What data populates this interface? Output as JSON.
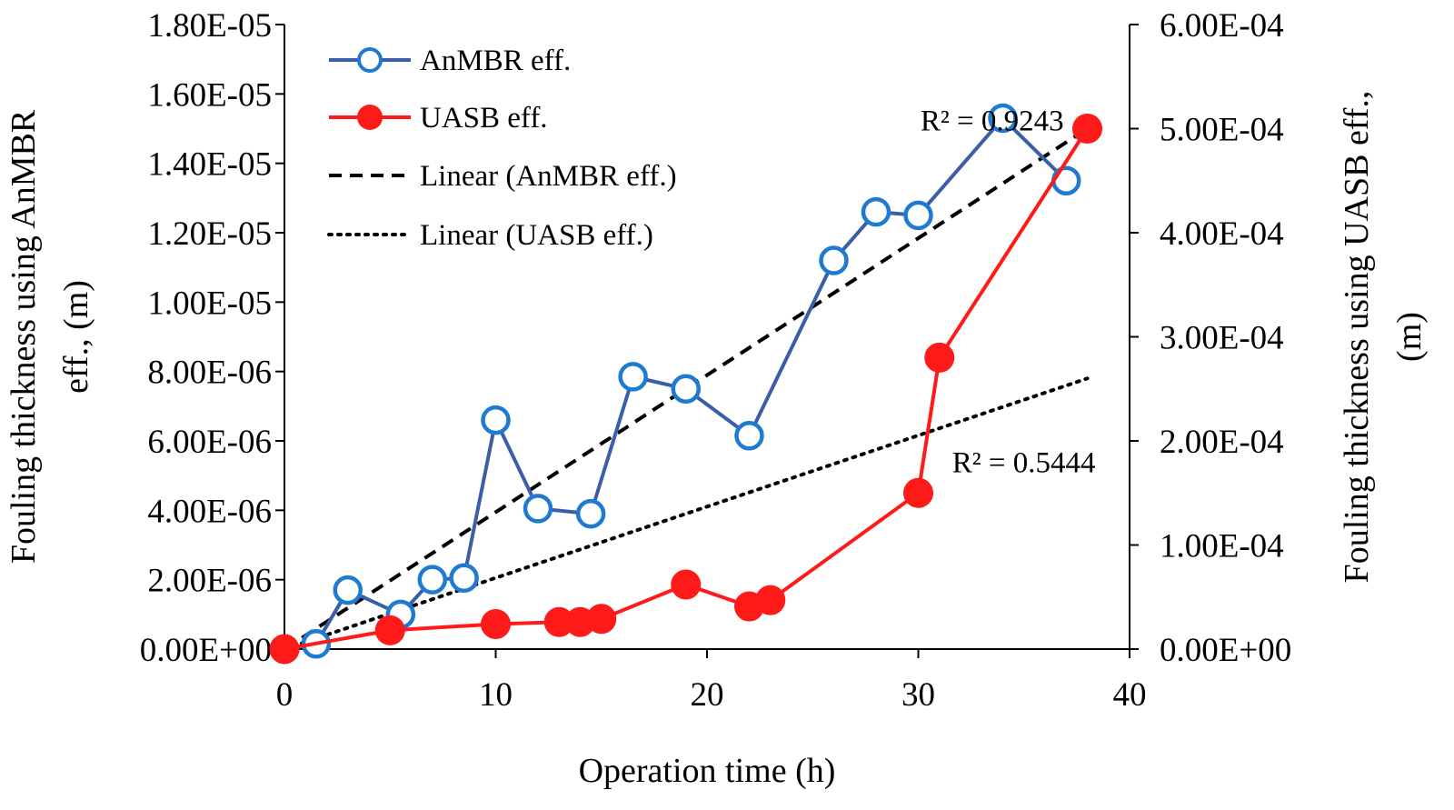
{
  "chart_data": {
    "type": "line",
    "xlabel": "Operation time (h)",
    "ylabel_left_lines": [
      "Fouling thickness using AnMBR",
      "eff., (m)"
    ],
    "ylabel_right_lines": [
      "Fouling thickness using UASB eff.,",
      "(m)"
    ],
    "xlim": [
      0,
      40
    ],
    "ylim_left": [
      0,
      1.8e-05
    ],
    "ylim_right": [
      0,
      0.0006
    ],
    "x_ticks": [
      0,
      10,
      20,
      30,
      40
    ],
    "x_tick_labels": [
      "0",
      "10",
      "20",
      "30",
      "40"
    ],
    "y_left_ticks": [
      0,
      2e-06,
      4e-06,
      6e-06,
      8e-06,
      1e-05,
      1.2e-05,
      1.4e-05,
      1.6e-05,
      1.8e-05
    ],
    "y_left_tick_labels": [
      "0.00E+00",
      "2.00E-06",
      "4.00E-06",
      "6.00E-06",
      "8.00E-06",
      "1.00E-05",
      "1.20E-05",
      "1.40E-05",
      "1.60E-05",
      "1.80E-05"
    ],
    "y_right_ticks": [
      0,
      0.0001,
      0.0002,
      0.0003,
      0.0004,
      0.0005,
      0.0006
    ],
    "y_right_tick_labels": [
      "0.00E+00",
      "1.00E-04",
      "2.00E-04",
      "3.00E-04",
      "4.00E-04",
      "5.00E-04",
      "6.00E-04"
    ],
    "grid": false,
    "legend_position": "top-left",
    "series": [
      {
        "name": "AnMBR eff.",
        "axis": "left",
        "color": "#3a5ea8",
        "marker": "open-circle",
        "marker_edge": "#1f7ad1",
        "x": [
          0,
          1.5,
          3,
          5.5,
          7,
          8.5,
          10,
          12,
          14.5,
          16.5,
          19,
          22,
          26,
          28,
          30,
          34,
          37
        ],
        "y": [
          0,
          1.5e-07,
          1.7e-06,
          1e-06,
          2e-06,
          2.05e-06,
          6.6e-06,
          4.05e-06,
          3.9e-06,
          7.85e-06,
          7.5e-06,
          6.15e-06,
          1.12e-05,
          1.26e-05,
          1.25e-05,
          1.53e-05,
          1.35e-05
        ]
      },
      {
        "name": "UASB eff.",
        "axis": "right",
        "color": "#ff1a1a",
        "marker": "filled-circle",
        "x": [
          0,
          5,
          10,
          13,
          14,
          15,
          19,
          22,
          23,
          30,
          31,
          38
        ],
        "y": [
          0,
          1.8e-05,
          2.4e-05,
          2.6e-05,
          2.6e-05,
          2.9e-05,
          6.2e-05,
          4.1e-05,
          4.7e-05,
          0.00015,
          0.00028,
          0.0005
        ]
      },
      {
        "name": "Linear (AnMBR eff.)",
        "axis": "left",
        "style": "dashed",
        "color": "#000000",
        "x": [
          0,
          38
        ],
        "y": [
          0,
          1.5e-05
        ]
      },
      {
        "name": "Linear (UASB eff.)",
        "axis": "right",
        "style": "dotted",
        "color": "#000000",
        "x": [
          0,
          38
        ],
        "y": [
          0,
          0.00026
        ]
      }
    ],
    "annotations": [
      {
        "text": "R² = 0.9243",
        "near_series": "Linear (AnMBR eff.)",
        "x": 30.1,
        "y_left": 1.495e-05
      },
      {
        "text": "R² = 0.5444",
        "near_series": "Linear (UASB eff.)",
        "x": 31.6,
        "y_left": 5.1e-06
      }
    ]
  }
}
